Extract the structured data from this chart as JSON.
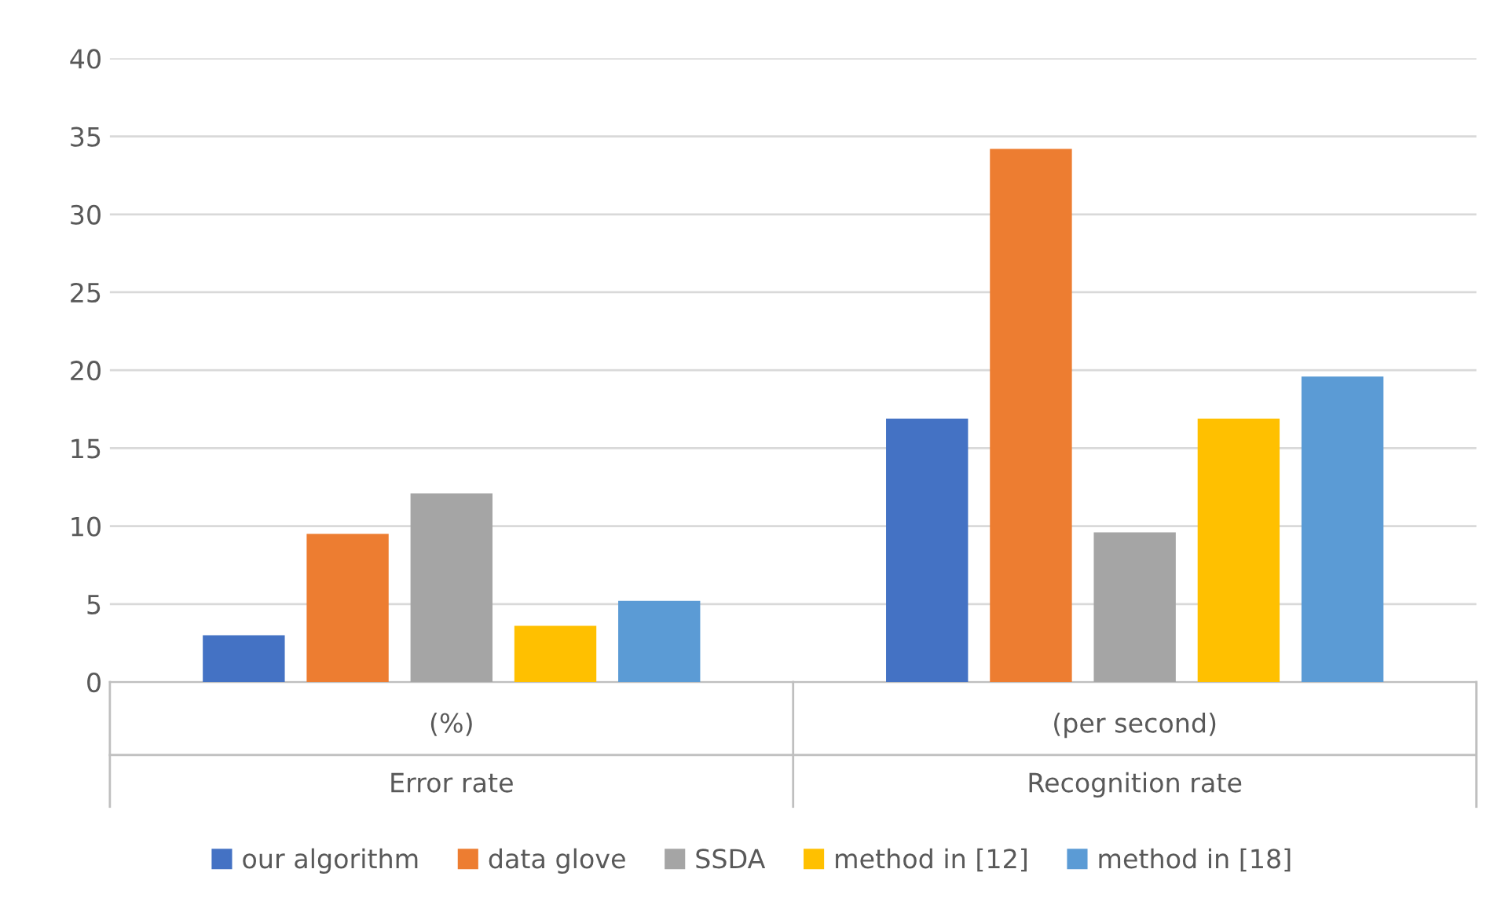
{
  "chart_data": {
    "type": "bar",
    "categories": [
      "(%)",
      "(per second)"
    ],
    "annotations": [
      "Error rate",
      "Recognition rate"
    ],
    "series": [
      {
        "name": "our algorithm",
        "color": "#4472c4",
        "values": [
          3.0,
          16.9
        ]
      },
      {
        "name": "data glove",
        "color": "#ed7d31",
        "values": [
          9.5,
          34.2
        ]
      },
      {
        "name": "SSDA",
        "color": "#a5a5a5",
        "values": [
          12.1,
          9.6
        ]
      },
      {
        "name": "method in [12]",
        "color": "#ffc000",
        "values": [
          3.6,
          16.9
        ]
      },
      {
        "name": "method in [18]",
        "color": "#5b9bd5",
        "values": [
          5.2,
          19.6
        ]
      }
    ],
    "ylim": [
      0,
      40
    ],
    "yticks": [
      0,
      5,
      10,
      15,
      20,
      25,
      30,
      35,
      40
    ],
    "grid": "y",
    "legend": "bottom"
  }
}
